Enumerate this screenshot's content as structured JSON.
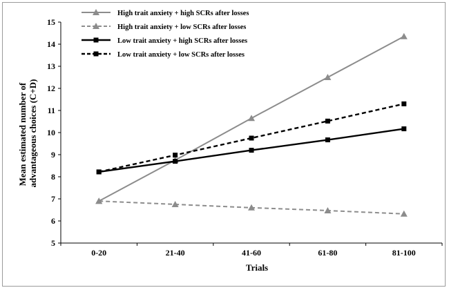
{
  "chart_data": {
    "type": "line",
    "title": "",
    "xlabel": "Trials",
    "ylabel_lines": [
      "Mean estimated number of",
      "advantageous choices (C+D)"
    ],
    "categories": [
      "0-20",
      "21-40",
      "41-60",
      "61-80",
      "81-100"
    ],
    "ylim": [
      5,
      15
    ],
    "yticks": [
      5,
      6,
      7,
      8,
      9,
      10,
      11,
      12,
      13,
      14,
      15
    ],
    "grid": false,
    "legend_position": "top-left",
    "series": [
      {
        "name": "High trait anxiety + high SCRs after losses",
        "values": [
          6.9,
          8.75,
          10.65,
          12.5,
          14.35
        ],
        "color": "#8c8c8c",
        "dash": "solid",
        "marker": "triangle"
      },
      {
        "name": "High trait anxiety + low SCRs after losses",
        "values": [
          6.9,
          6.75,
          6.6,
          6.47,
          6.32
        ],
        "color": "#8c8c8c",
        "dash": "dashed",
        "marker": "triangle"
      },
      {
        "name": "Low trait anxiety + high SCRs after losses",
        "values": [
          8.22,
          8.7,
          9.2,
          9.67,
          10.17
        ],
        "color": "#000000",
        "dash": "solid",
        "marker": "square"
      },
      {
        "name": "Low trait anxiety +  low SCRs after losses",
        "values": [
          8.22,
          8.98,
          9.75,
          10.52,
          11.3
        ],
        "color": "#000000",
        "dash": "dashed",
        "marker": "square"
      }
    ]
  }
}
